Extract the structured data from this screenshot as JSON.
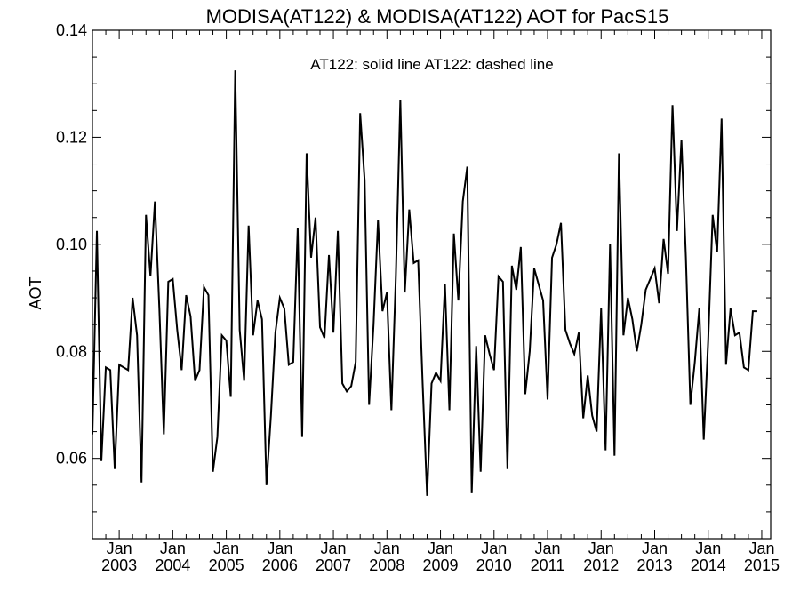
{
  "chart_data": {
    "type": "line",
    "title": "MODISA(AT122) & MODISA(AT122)  AOT for PacS15",
    "annotation": "AT122: solid line   AT122: dashed line",
    "xlabel": "",
    "ylabel": "AOT",
    "xlim": [
      "2002-07",
      "2015-03"
    ],
    "ylim": [
      0.045,
      0.14
    ],
    "yticks": [
      0.06,
      0.08,
      0.1,
      0.12,
      0.14
    ],
    "ytick_labels": [
      "0.06",
      "0.08",
      "0.10",
      "0.12",
      "0.14"
    ],
    "xticks": [
      {
        "date": "2003-01",
        "month": "Jan",
        "year": "2003"
      },
      {
        "date": "2004-01",
        "month": "Jan",
        "year": "2004"
      },
      {
        "date": "2005-01",
        "month": "Jan",
        "year": "2005"
      },
      {
        "date": "2006-01",
        "month": "Jan",
        "year": "2006"
      },
      {
        "date": "2007-01",
        "month": "Jan",
        "year": "2007"
      },
      {
        "date": "2008-01",
        "month": "Jan",
        "year": "2008"
      },
      {
        "date": "2009-01",
        "month": "Jan",
        "year": "2009"
      },
      {
        "date": "2010-01",
        "month": "Jan",
        "year": "2010"
      },
      {
        "date": "2011-01",
        "month": "Jan",
        "year": "2011"
      },
      {
        "date": "2012-01",
        "month": "Jan",
        "year": "2012"
      },
      {
        "date": "2013-01",
        "month": "Jan",
        "year": "2013"
      },
      {
        "date": "2014-01",
        "month": "Jan",
        "year": "2014"
      },
      {
        "date": "2015-01",
        "month": "Jan",
        "year": "2015"
      }
    ],
    "grid": false,
    "series": [
      {
        "style": "solid",
        "color": "#000000",
        "start": "2002-07",
        "values": [
          0.0645,
          0.1025,
          0.0595,
          0.077,
          0.0765,
          0.058,
          0.0775,
          0.077,
          0.0765,
          0.09,
          0.083,
          0.0555,
          0.1055,
          0.094,
          0.108,
          0.088,
          0.0645,
          0.093,
          0.0935,
          0.084,
          0.0765,
          0.0905,
          0.0865,
          0.0745,
          0.0765,
          0.092,
          0.0905,
          0.0575,
          0.064,
          0.083,
          0.082,
          0.0715,
          0.1325,
          0.084,
          0.0745,
          0.1035,
          0.083,
          0.0895,
          0.086,
          0.055,
          0.068,
          0.0835,
          0.09,
          0.088,
          0.0775,
          0.078,
          0.103,
          0.064,
          0.117,
          0.0975,
          0.105,
          0.0845,
          0.0825,
          0.098,
          0.0835,
          0.1025,
          0.074,
          0.0725,
          0.0735,
          0.078,
          0.1245,
          0.112,
          0.07,
          0.085,
          0.1045,
          0.0875,
          0.091,
          0.069,
          0.094,
          0.127,
          0.091,
          0.1065,
          0.0965,
          0.097,
          0.074,
          0.053,
          0.074,
          0.076,
          0.0745,
          0.0925,
          0.069,
          0.102,
          0.0895,
          0.108,
          0.1145,
          0.0535,
          0.081,
          0.0575,
          0.083,
          0.0795,
          0.0765,
          0.094,
          0.093,
          0.058,
          0.096,
          0.0915,
          0.0995,
          0.072,
          0.08,
          0.0955,
          0.0925,
          0.0895,
          0.071,
          0.0975,
          0.1,
          0.104,
          0.084,
          0.0815,
          0.0795,
          0.0835,
          0.0675,
          0.0755,
          0.068,
          0.065,
          0.088,
          0.0615,
          0.1,
          0.0605,
          0.117,
          0.083,
          0.09,
          0.086,
          0.08,
          0.085,
          0.0915,
          0.0935,
          0.0955,
          0.089,
          0.101,
          0.0945,
          0.126,
          0.1025,
          0.1195,
          0.0975,
          0.07,
          0.078,
          0.088,
          0.0635,
          0.082,
          0.1055,
          0.0985,
          0.1235,
          0.0775,
          0.088,
          0.083,
          0.0835,
          0.077,
          0.0765,
          0.0875,
          0.0875
        ]
      }
    ]
  }
}
